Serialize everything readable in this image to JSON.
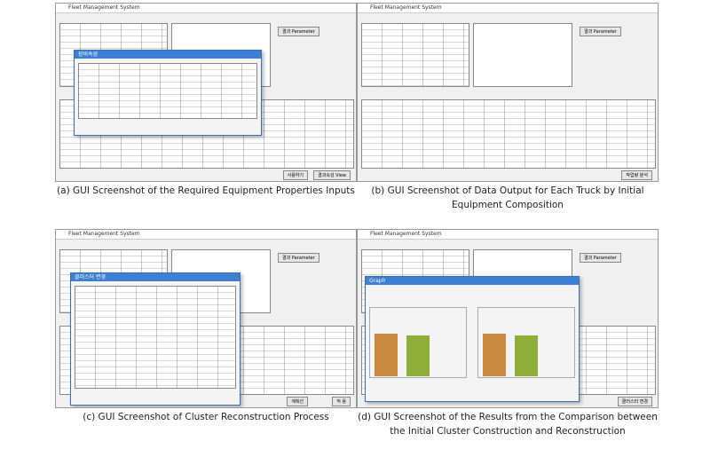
{
  "panels": [
    {
      "window_title": "Fleet Management System",
      "buttons": [
        "결과 Parameter",
        "결과속성 View",
        "사용하기"
      ],
      "dialog_title": "장비속성",
      "caption": [
        "(a) GUI Screenshot of the Required Equipment Properties Inputs"
      ]
    },
    {
      "window_title": "Fleet Management System",
      "buttons": [
        "결과 Parameter",
        "작업량 분석"
      ],
      "dialog_title": null,
      "caption": [
        "(b) GUI Screenshot of Data Output for Each Truck by Initial",
        "Equipment Composition"
      ]
    },
    {
      "window_title": "Fleet Management System",
      "buttons": [
        "결과 Parameter",
        "적 용",
        "계획선"
      ],
      "dialog_title": "클러스터 변경",
      "caption": [
        "(c) GUI Screenshot of Cluster Reconstruction Process"
      ]
    },
    {
      "window_title": "Fleet Management System",
      "buttons": [
        "결과 Parameter",
        "클러스터 변경"
      ],
      "dialog_title": "Graph",
      "caption": [
        "(d) GUI Screenshot of the Results from the Comparison between",
        "the Initial Cluster Construction and Reconstruction"
      ]
    }
  ]
}
